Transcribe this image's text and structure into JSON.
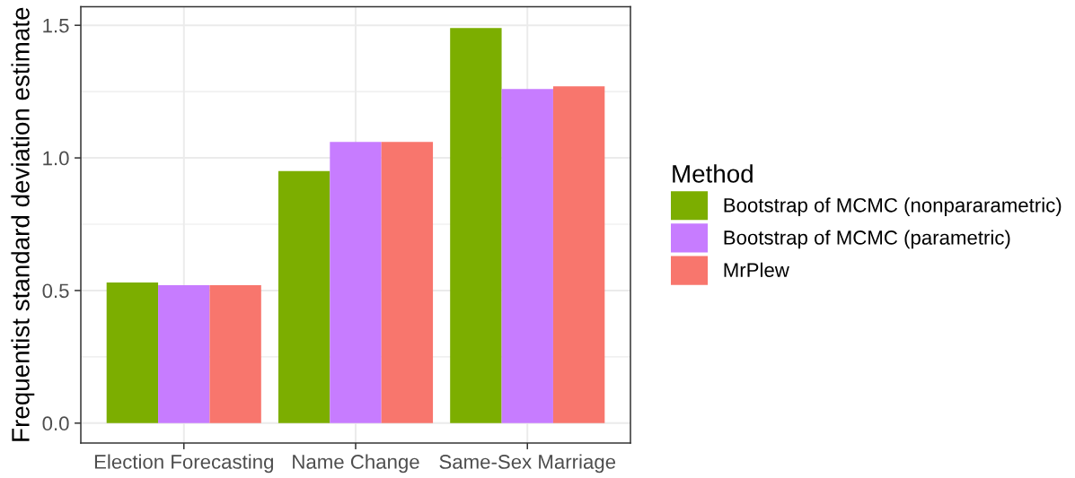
{
  "chart_data": {
    "type": "bar",
    "ylabel": "Frequentist standard deviation estimate",
    "legend_title": "Method",
    "categories": [
      "Election Forecasting",
      "Name Change",
      "Same-Sex Marriage"
    ],
    "series": [
      {
        "name": "Bootstrap of MCMC (nonpararametric)",
        "color": "#7cae00",
        "values": [
          0.53,
          0.95,
          1.49
        ]
      },
      {
        "name": "Bootstrap of MCMC (parametric)",
        "color": "#c77cff",
        "values": [
          0.52,
          1.06,
          1.26
        ]
      },
      {
        "name": "MrPlew",
        "color": "#f8766d",
        "values": [
          0.52,
          1.06,
          1.27
        ]
      }
    ],
    "ylim": [
      -0.075,
      1.57
    ],
    "yticks": [
      {
        "value": 0,
        "label": "0.0"
      },
      {
        "value": 0.25,
        "label": null
      },
      {
        "value": 0.5,
        "label": "0.5"
      },
      {
        "value": 0.75,
        "label": null
      },
      {
        "value": 1,
        "label": "1.0"
      },
      {
        "value": 1.25,
        "label": null
      },
      {
        "value": 1.5,
        "label": "1.5"
      }
    ],
    "grid": true,
    "legend": "right"
  }
}
